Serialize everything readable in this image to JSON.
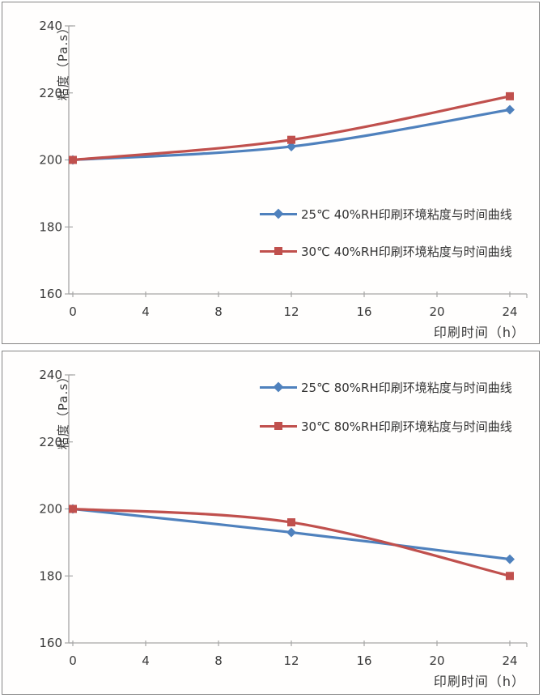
{
  "colors": {
    "series_blue": "#4F81BD",
    "series_red": "#C0504D",
    "axis_line": "#A6A6A6",
    "text": "#3a3a3a",
    "panel_border": "#858585"
  },
  "chart_data": [
    {
      "type": "line",
      "title": "",
      "xlabel": "印刷时间（h）",
      "ylabel": "粘度（Pa.s）",
      "x": [
        0,
        12,
        24
      ],
      "x_ticks": [
        0,
        4,
        8,
        12,
        16,
        20,
        24
      ],
      "y_ticks": [
        240,
        220,
        200,
        180,
        160
      ],
      "xlim": [
        0,
        24
      ],
      "ylim": [
        160,
        240
      ],
      "grid": false,
      "smooth": true,
      "legend_position": "middle-right",
      "series": [
        {
          "name": "25℃ 40%RH印刷环境粘度与时间曲线",
          "color": "#4F81BD",
          "marker": "diamond",
          "values": [
            200,
            204,
            215
          ]
        },
        {
          "name": "30℃ 40%RH印刷环境粘度与时间曲线",
          "color": "#C0504D",
          "marker": "square",
          "values": [
            200,
            206,
            219
          ]
        }
      ]
    },
    {
      "type": "line",
      "title": "",
      "xlabel": "印刷时间（h）",
      "ylabel": "粘度（Pa.s）",
      "x": [
        0,
        12,
        24
      ],
      "x_ticks": [
        0,
        4,
        8,
        12,
        16,
        20,
        24
      ],
      "y_ticks": [
        240,
        220,
        200,
        180,
        160
      ],
      "xlim": [
        0,
        24
      ],
      "ylim": [
        160,
        240
      ],
      "grid": false,
      "smooth": true,
      "legend_position": "top-right",
      "series": [
        {
          "name": "25℃ 80%RH印刷环境粘度与时间曲线",
          "color": "#4F81BD",
          "marker": "diamond",
          "values": [
            200,
            193,
            185
          ]
        },
        {
          "name": "30℃ 80%RH印刷环境粘度与时间曲线",
          "color": "#C0504D",
          "marker": "square",
          "values": [
            200,
            196,
            180
          ]
        }
      ]
    }
  ]
}
